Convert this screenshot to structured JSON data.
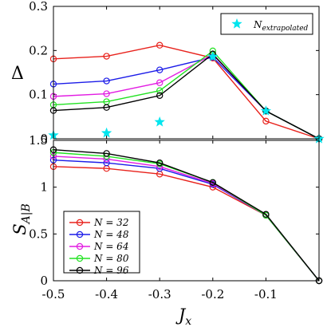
{
  "chart_data": [
    {
      "type": "line",
      "x": [
        -0.5,
        -0.4,
        -0.3,
        -0.2,
        -0.1,
        0.0
      ],
      "xlim": [
        -0.5,
        0.0
      ],
      "ylim": [
        0,
        0.3
      ],
      "yticks": [
        "0",
        "0.1",
        "0.2",
        "0.3"
      ],
      "ylabel": "Δ",
      "colors": {
        "N = 32": "#e8221c",
        "N = 48": "#1c1ce8",
        "N = 64": "#e21ce2",
        "N = 80": "#22e222",
        "N = 96": "#000000",
        "star": "#00e5ee"
      },
      "series": [
        {
          "name": "N = 32",
          "color": "#e8221c",
          "values": [
            0.181,
            0.187,
            0.212,
            0.183,
            0.04,
            0.0
          ]
        },
        {
          "name": "N = 48",
          "color": "#1c1ce8",
          "values": [
            0.124,
            0.131,
            0.156,
            0.185,
            0.063,
            0.0
          ]
        },
        {
          "name": "N = 64",
          "color": "#e21ce2",
          "values": [
            0.096,
            0.102,
            0.127,
            0.191,
            0.063,
            0.0
          ]
        },
        {
          "name": "N = 80",
          "color": "#22e222",
          "values": [
            0.077,
            0.084,
            0.109,
            0.199,
            0.063,
            0.0
          ]
        },
        {
          "name": "N = 96",
          "color": "#000000",
          "values": [
            0.064,
            0.071,
            0.098,
            0.192,
            0.063,
            0.0
          ]
        }
      ],
      "extrapolated": {
        "name": "N_extrapolated",
        "color": "#00e5ee",
        "x": [
          -0.5,
          -0.4,
          -0.3,
          -0.2,
          -0.1,
          0.0
        ],
        "values": [
          0.008,
          0.013,
          0.038,
          0.186,
          0.063,
          0.0
        ]
      },
      "legend": {
        "main": "N",
        "sub": "extrapolated",
        "placement": "top-right"
      }
    },
    {
      "type": "line",
      "x": [
        -0.5,
        -0.4,
        -0.3,
        -0.2,
        -0.1,
        0.0
      ],
      "xlim": [
        -0.5,
        0.0
      ],
      "ylim": [
        0,
        1.5
      ],
      "yticks": [
        "0",
        "0.5",
        "1",
        "1.5"
      ],
      "xticks": [
        "-0.5",
        "-0.4",
        "-0.3",
        "-0.2",
        "-0.1"
      ],
      "ylabel": {
        "main": "S",
        "sub": "A|B"
      },
      "xlabel": {
        "main": "J",
        "sub": "x"
      },
      "series": [
        {
          "name": "N = 32",
          "color": "#e8221c",
          "values": [
            1.22,
            1.2,
            1.14,
            1.0,
            0.7,
            0.0
          ]
        },
        {
          "name": "N = 48",
          "color": "#1c1ce8",
          "values": [
            1.29,
            1.26,
            1.2,
            1.03,
            0.7,
            0.0
          ]
        },
        {
          "name": "N = 64",
          "color": "#e21ce2",
          "values": [
            1.33,
            1.3,
            1.22,
            1.04,
            0.7,
            0.0
          ]
        },
        {
          "name": "N = 80",
          "color": "#22e222",
          "values": [
            1.37,
            1.33,
            1.25,
            1.05,
            0.7,
            0.0
          ]
        },
        {
          "name": "N = 96",
          "color": "#000000",
          "values": [
            1.4,
            1.36,
            1.26,
            1.05,
            0.71,
            0.0
          ]
        }
      ],
      "legend": {
        "placement": "bottom-left",
        "entries": [
          "N = 32",
          "N = 48",
          "N = 64",
          "N = 80",
          "N = 96"
        ]
      }
    }
  ]
}
